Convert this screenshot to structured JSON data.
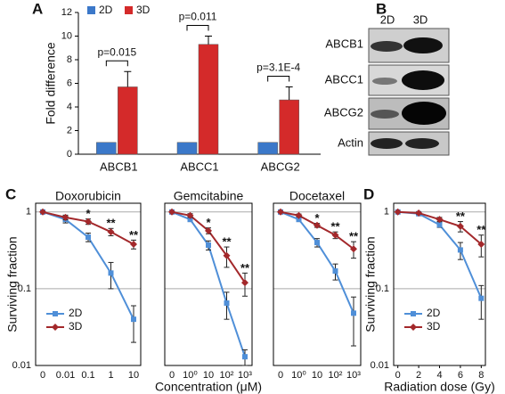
{
  "blot": {
    "panel": "B",
    "lanes": [
      "2D",
      "3D"
    ],
    "proteins": [
      "ABCB1",
      "ABCC1",
      "ABCG2",
      "Actin"
    ]
  },
  "chart_data": [
    {
      "type": "bar",
      "panel": "A",
      "ylabel": "Fold difference",
      "categories": [
        "ABCB1",
        "ABCC1",
        "ABCG2"
      ],
      "series": [
        {
          "name": "2D",
          "color": "#3b78c9",
          "values": [
            1,
            1,
            1
          ]
        },
        {
          "name": "3D",
          "color": "#d42a2a",
          "values": [
            5.7,
            9.3,
            4.6
          ],
          "errors": [
            1.3,
            0.7,
            1.1
          ]
        }
      ],
      "ylim": [
        0,
        12
      ],
      "yticks": [
        0,
        2,
        4,
        6,
        8,
        10,
        12
      ],
      "legend": "top-left",
      "annotations": [
        "p=0.015",
        "p=0.011",
        "p=3.1E-4"
      ]
    },
    {
      "type": "line",
      "panel": "C",
      "title": "Doxorubicin",
      "ylabel": "Surviving fraction",
      "log_y": true,
      "grid": true,
      "legend": "lower-left",
      "show_ytick_labels": true,
      "categories": [
        "0",
        "0.01",
        "0.1",
        "1",
        "10"
      ],
      "series": [
        {
          "name": "2D",
          "color": "#4f8fd8",
          "marker": "square",
          "values": [
            1,
            0.8,
            0.47,
            0.16,
            0.04
          ],
          "errors": [
            0.03,
            0.08,
            0.06,
            0.06,
            0.02
          ]
        },
        {
          "name": "3D",
          "color": "#a3282b",
          "marker": "diamond",
          "values": [
            1,
            0.85,
            0.75,
            0.55,
            0.38
          ],
          "errors": [
            0.02,
            0.06,
            0.06,
            0.06,
            0.05
          ]
        }
      ],
      "ylim": [
        0.01,
        1.3
      ],
      "yticks": [
        0.01,
        0.1,
        1
      ],
      "stars": [
        {
          "label": "*",
          "category": "0.1"
        },
        {
          "label": "**",
          "category": "1"
        },
        {
          "label": "**",
          "category": "10"
        }
      ]
    },
    {
      "type": "line",
      "title": "Gemcitabine",
      "xlabel": "Concentration (μM)",
      "log_y": true,
      "grid": true,
      "show_ytick_labels": false,
      "categories": [
        "0",
        "10⁰",
        "10",
        "10²",
        "10³"
      ],
      "series": [
        {
          "color": "#4f8fd8",
          "marker": "square",
          "values": [
            1,
            0.8,
            0.37,
            0.065,
            0.013
          ],
          "errors": [
            0.02,
            0.05,
            0.05,
            0.025,
            0.003
          ]
        },
        {
          "color": "#a3282b",
          "marker": "diamond",
          "values": [
            1,
            0.9,
            0.57,
            0.27,
            0.12
          ],
          "errors": [
            0.02,
            0.05,
            0.05,
            0.08,
            0.04
          ]
        }
      ],
      "ylim": [
        0.01,
        1.3
      ],
      "yticks": [
        0.01,
        0.1,
        1
      ],
      "stars": [
        {
          "label": "*",
          "category": "10"
        },
        {
          "label": "**",
          "category": "10²"
        },
        {
          "label": "**",
          "category": "10³"
        }
      ]
    },
    {
      "type": "line",
      "title": "Docetaxel",
      "log_y": true,
      "grid": true,
      "show_ytick_labels": false,
      "categories": [
        "0",
        "10⁰",
        "10",
        "10²",
        "10³"
      ],
      "series": [
        {
          "color": "#4f8fd8",
          "marker": "square",
          "values": [
            1,
            0.8,
            0.4,
            0.17,
            0.048
          ],
          "errors": [
            0.02,
            0.05,
            0.05,
            0.04,
            0.03
          ]
        },
        {
          "color": "#a3282b",
          "marker": "diamond",
          "values": [
            1,
            0.9,
            0.67,
            0.5,
            0.33
          ],
          "errors": [
            0.02,
            0.04,
            0.04,
            0.05,
            0.08
          ]
        }
      ],
      "ylim": [
        0.01,
        1.3
      ],
      "yticks": [
        0.01,
        0.1,
        1
      ],
      "stars": [
        {
          "label": "*",
          "category": "10"
        },
        {
          "label": "**",
          "category": "10²"
        },
        {
          "label": "**",
          "category": "10³"
        }
      ]
    },
    {
      "type": "line",
      "panel": "D",
      "xlabel": "Radiation dose (Gy)",
      "ylabel": "Surviving fraction",
      "log_y": true,
      "grid": true,
      "legend": "lower-left",
      "show_ytick_labels": true,
      "x": [
        0,
        2,
        4,
        6,
        8
      ],
      "series": [
        {
          "name": "2D",
          "color": "#4f8fd8",
          "marker": "square",
          "values": [
            1,
            0.95,
            0.68,
            0.32,
            0.075
          ],
          "errors": [
            0.02,
            0.03,
            0.05,
            0.08,
            0.035
          ]
        },
        {
          "name": "3D",
          "color": "#a3282b",
          "marker": "diamond",
          "values": [
            1,
            0.97,
            0.8,
            0.65,
            0.38
          ],
          "errors": [
            0.02,
            0.03,
            0.05,
            0.1,
            0.12
          ]
        }
      ],
      "xlim": [
        -0.4,
        8.4
      ],
      "xticks": [
        0,
        2,
        4,
        6,
        8
      ],
      "ylim": [
        0.01,
        1.3
      ],
      "yticks": [
        0.01,
        0.1,
        1
      ],
      "stars": [
        {
          "label": "**",
          "x": 6
        },
        {
          "label": "**",
          "x": 8
        }
      ]
    }
  ]
}
